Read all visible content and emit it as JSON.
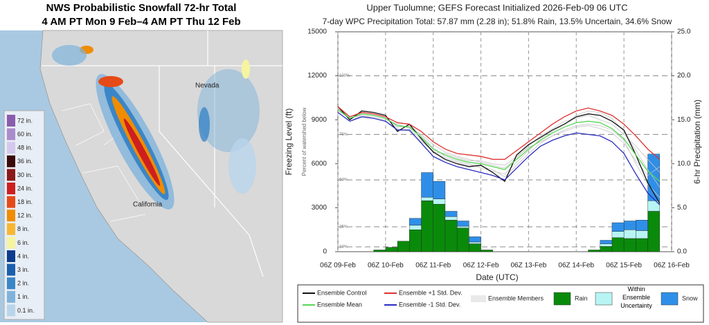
{
  "map": {
    "title": [
      "NWS Probabilistic Snowfall 72-hr Total",
      "4 AM PT Mon 9 Feb–4 AM PT Thu 12 Feb"
    ],
    "labels": [
      "Nevada",
      "California"
    ],
    "legend": [
      {
        "label": "72 in.",
        "color": "#8a5cad"
      },
      {
        "label": "60 in.",
        "color": "#a98ccc"
      },
      {
        "label": "48 in.",
        "color": "#d4c8ec"
      },
      {
        "label": "36 in.",
        "color": "#3b0a0a"
      },
      {
        "label": "30 in.",
        "color": "#8b1a1a"
      },
      {
        "label": "24 in.",
        "color": "#cc2020"
      },
      {
        "label": "18 in.",
        "color": "#e64a19"
      },
      {
        "label": "12 in.",
        "color": "#f08c00"
      },
      {
        "label": "8 in.",
        "color": "#f7b733"
      },
      {
        "label": "6 in.",
        "color": "#f5f5a0"
      },
      {
        "label": "4 in.",
        "color": "#0d3c8c"
      },
      {
        "label": "3 in.",
        "color": "#1b5fad"
      },
      {
        "label": "2 in.",
        "color": "#3b86c6"
      },
      {
        "label": "1 in.",
        "color": "#7fb3dc"
      },
      {
        "label": "0.1 in.",
        "color": "#b9d5ec"
      }
    ]
  },
  "chart_data": {
    "type": "line",
    "title": "Upper Tuolumne; GEFS Forecast Initialized 2026-Feb-09 06 UTC",
    "subtitle": "7-day WPC Precipitation Total: 57.87 mm (2.28 in);  51.8% Rain, 13.5% Uncertain, 34.6% Snow",
    "x_label": "Date (UTC)",
    "y_label": "Freezing Level (ft)",
    "y2_label": "6-hr Precipitation (mm)",
    "watershed_label": "Percent of watershed below",
    "watershed_ticks": [
      {
        "value": 12000,
        "label": "100%"
      },
      {
        "value": 8000,
        "label": "75%"
      },
      {
        "value": 4900,
        "label": "50%"
      },
      {
        "value": 1700,
        "label": "25%"
      },
      {
        "value": 330,
        "label": "10%"
      }
    ],
    "xlim": [
      0,
      168
    ],
    "xticks": [
      {
        "value": 0,
        "label": "06Z 09-Feb"
      },
      {
        "value": 24,
        "label": "06Z 10-Feb"
      },
      {
        "value": 48,
        "label": "06Z 11-Feb"
      },
      {
        "value": 72,
        "label": "06Z 12-Feb"
      },
      {
        "value": 96,
        "label": "06Z 13-Feb"
      },
      {
        "value": 120,
        "label": "06Z 14-Feb"
      },
      {
        "value": 144,
        "label": "06Z 15-Feb"
      },
      {
        "value": 168,
        "label": "06Z 16-Feb"
      }
    ],
    "ylim": [
      0,
      15000
    ],
    "yticks": [
      0,
      3000,
      6000,
      9000,
      12000,
      15000
    ],
    "y2lim": [
      0,
      25
    ],
    "y2ticks": [
      {
        "value": 0,
        "label": "0.0"
      },
      {
        "value": 5,
        "label": "5.0"
      },
      {
        "value": 10,
        "label": "10.0"
      },
      {
        "value": 15,
        "label": "15.0"
      },
      {
        "value": 20,
        "label": "20.0"
      },
      {
        "value": 25,
        "label": "25.0"
      }
    ],
    "x": [
      0,
      6,
      12,
      18,
      24,
      30,
      36,
      42,
      48,
      54,
      60,
      66,
      72,
      78,
      84,
      90,
      96,
      102,
      108,
      114,
      120,
      126,
      132,
      138,
      144,
      150,
      156,
      162
    ],
    "series": [
      {
        "name": "Ensemble Control",
        "type": "line",
        "color": "#111111",
        "values": [
          9900,
          9000,
          9600,
          9500,
          9300,
          8200,
          8700,
          7700,
          6800,
          6300,
          6000,
          5800,
          5900,
          5400,
          4800,
          6600,
          7300,
          7800,
          8300,
          8700,
          9200,
          9400,
          9300,
          8900,
          8300,
          6600,
          4700,
          3300
        ]
      },
      {
        "name": "Ensemble Mean",
        "type": "line",
        "color": "#55d655",
        "values": [
          9700,
          9100,
          9400,
          9300,
          9100,
          8600,
          8500,
          7800,
          7000,
          6600,
          6300,
          6100,
          6000,
          5800,
          5600,
          6300,
          7000,
          7600,
          8100,
          8500,
          8800,
          8900,
          8800,
          8400,
          7700,
          6600,
          5500,
          4800
        ]
      },
      {
        "name": "Ensemble +1 Std. Dev.",
        "type": "line",
        "color": "#e03030",
        "values": [
          9900,
          9200,
          9500,
          9400,
          9200,
          8800,
          8700,
          8200,
          7500,
          7000,
          6700,
          6600,
          6500,
          6300,
          6300,
          6900,
          7500,
          8100,
          8700,
          9200,
          9600,
          9800,
          9600,
          9300,
          8700,
          7900,
          7000,
          6300
        ]
      },
      {
        "name": "Ensemble -1 Std. Dev.",
        "type": "line",
        "color": "#2a2ac0",
        "values": [
          9500,
          8900,
          9200,
          9100,
          8900,
          8300,
          8300,
          7400,
          6500,
          6100,
          5800,
          5600,
          5400,
          5200,
          4900,
          5700,
          6500,
          7200,
          7600,
          7900,
          8100,
          8000,
          7900,
          7500,
          6700,
          5300,
          4000,
          3200
        ]
      },
      {
        "name": "Ensemble Members",
        "type": "members",
        "color": "#c4c4c4",
        "members": [
          [
            9800,
            9000,
            9500,
            9400,
            9200,
            8500,
            8600,
            7900,
            7100,
            6500,
            6200,
            6000,
            5700,
            5500,
            5300,
            6100,
            6900,
            7700,
            8200,
            8700,
            9300,
            9600,
            9500,
            9100,
            8200,
            6900,
            5600,
            4400
          ],
          [
            9600,
            9100,
            9300,
            9200,
            9000,
            8700,
            8400,
            7600,
            6800,
            6700,
            6400,
            6200,
            6200,
            6000,
            5900,
            6500,
            7100,
            7500,
            7900,
            8200,
            8500,
            8600,
            8400,
            8100,
            7400,
            6200,
            5200,
            5800
          ],
          [
            9700,
            9200,
            9400,
            9300,
            9100,
            8600,
            8500,
            8000,
            7300,
            6800,
            6500,
            6300,
            6100,
            5900,
            5700,
            6400,
            7200,
            7900,
            8400,
            8900,
            9100,
            9300,
            9000,
            8700,
            8000,
            7200,
            6300,
            5400
          ],
          [
            9500,
            8900,
            9300,
            9100,
            8900,
            8400,
            8200,
            7500,
            6900,
            6400,
            6100,
            5900,
            5800,
            5600,
            5100,
            5900,
            6700,
            7400,
            7900,
            8300,
            8600,
            8700,
            8600,
            8300,
            7600,
            6000,
            4600,
            3700
          ]
        ]
      },
      {
        "name": "Rain",
        "type": "bar",
        "axis": "y2",
        "color": "#0a8a0a",
        "x": [
          18,
          24,
          30,
          36,
          42,
          48,
          54,
          60,
          66,
          72,
          126,
          132,
          138,
          144,
          150,
          156
        ],
        "values": [
          0.2,
          0.5,
          1.2,
          2.5,
          5.8,
          5.4,
          3.6,
          2.7,
          0.9,
          0.2,
          0.2,
          0.6,
          1.6,
          1.5,
          1.5,
          4.6
        ]
      },
      {
        "name": "Within Ensemble Uncertainty",
        "type": "bar",
        "axis": "y2",
        "color": "#b8f4f4",
        "x": [
          18,
          24,
          30,
          36,
          42,
          48,
          54,
          60,
          66,
          72,
          126,
          132,
          138,
          144,
          150,
          156
        ],
        "values": [
          0,
          0,
          0,
          0.5,
          0.4,
          0.6,
          0.4,
          0.2,
          0.2,
          0,
          0,
          0.3,
          0.7,
          1.0,
          0.9,
          1.2
        ]
      },
      {
        "name": "Snow",
        "type": "bar",
        "axis": "y2",
        "color": "#2f8fe8",
        "x": [
          18,
          24,
          30,
          36,
          42,
          48,
          54,
          60,
          66,
          72,
          126,
          132,
          138,
          144,
          150,
          156
        ],
        "values": [
          0,
          0,
          0,
          0.8,
          2.8,
          2.0,
          0.6,
          0.6,
          0.6,
          0,
          0,
          0.4,
          1.0,
          1.0,
          1.2,
          5.3
        ]
      }
    ]
  }
}
